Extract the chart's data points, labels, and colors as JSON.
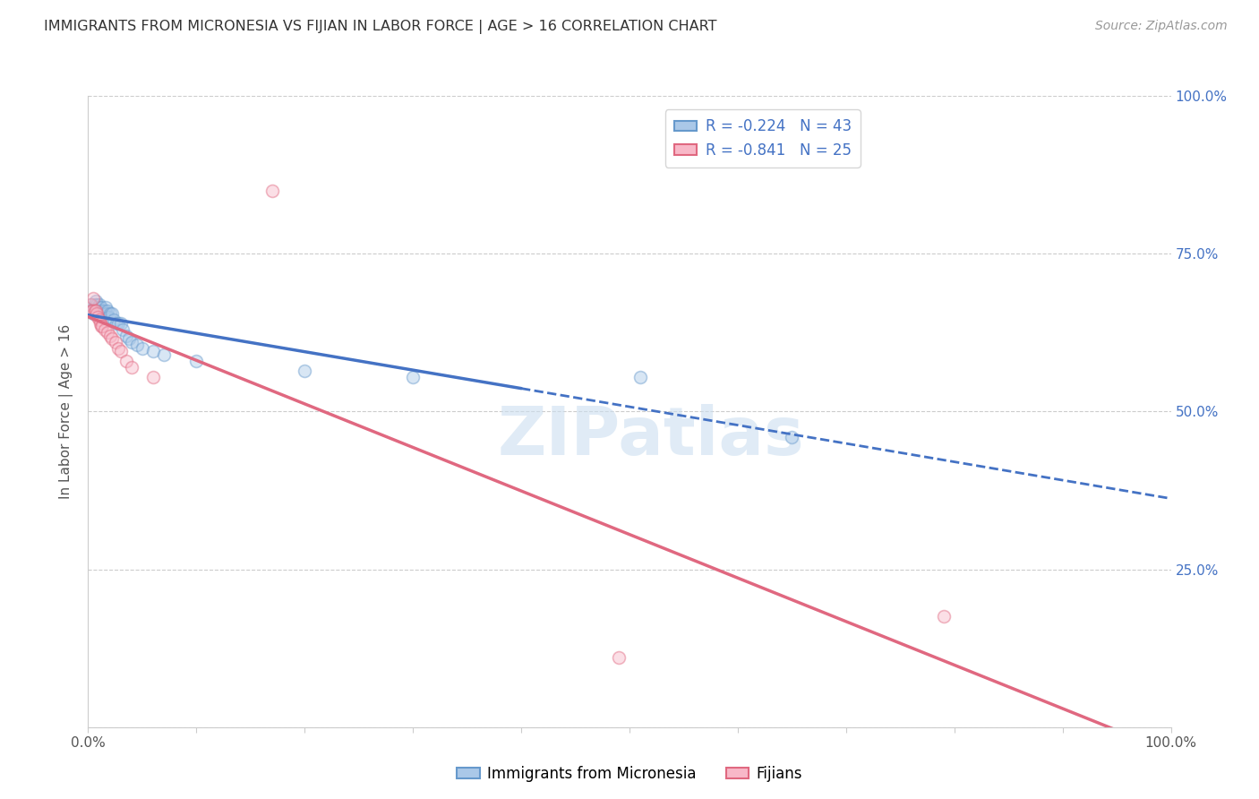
{
  "title": "IMMIGRANTS FROM MICRONESIA VS FIJIAN IN LABOR FORCE | AGE > 16 CORRELATION CHART",
  "source": "Source: ZipAtlas.com",
  "ylabel": "In Labor Force | Age > 16",
  "xlim": [
    0.0,
    1.0
  ],
  "ylim": [
    0.0,
    1.0
  ],
  "micronesia_color": "#aac8e8",
  "fijian_color": "#f8b8c8",
  "micronesia_edge": "#6699cc",
  "fijian_edge": "#e06880",
  "micronesia_line_color": "#4472c4",
  "fijian_line_color": "#e06880",
  "legend_r_micro": "R = -0.224",
  "legend_n_micro": "N = 43",
  "legend_r_fiji": "R = -0.841",
  "legend_n_fiji": "N = 25",
  "micronesia_x": [
    0.002,
    0.003,
    0.004,
    0.005,
    0.006,
    0.006,
    0.007,
    0.007,
    0.008,
    0.008,
    0.009,
    0.009,
    0.01,
    0.01,
    0.011,
    0.011,
    0.012,
    0.013,
    0.014,
    0.015,
    0.016,
    0.017,
    0.018,
    0.019,
    0.02,
    0.022,
    0.024,
    0.026,
    0.028,
    0.03,
    0.032,
    0.035,
    0.038,
    0.04,
    0.045,
    0.05,
    0.06,
    0.07,
    0.1,
    0.2,
    0.3,
    0.51,
    0.65
  ],
  "micronesia_y": [
    0.66,
    0.67,
    0.66,
    0.655,
    0.665,
    0.67,
    0.66,
    0.675,
    0.66,
    0.67,
    0.665,
    0.655,
    0.665,
    0.67,
    0.66,
    0.655,
    0.665,
    0.66,
    0.655,
    0.66,
    0.665,
    0.655,
    0.66,
    0.65,
    0.655,
    0.655,
    0.645,
    0.64,
    0.64,
    0.64,
    0.63,
    0.62,
    0.615,
    0.61,
    0.605,
    0.6,
    0.595,
    0.59,
    0.58,
    0.565,
    0.555,
    0.555,
    0.46
  ],
  "fijian_x": [
    0.002,
    0.003,
    0.004,
    0.005,
    0.006,
    0.007,
    0.008,
    0.009,
    0.01,
    0.011,
    0.012,
    0.013,
    0.015,
    0.018,
    0.02,
    0.022,
    0.025,
    0.028,
    0.03,
    0.035,
    0.04,
    0.06,
    0.17,
    0.49,
    0.79
  ],
  "fijian_y": [
    0.67,
    0.66,
    0.66,
    0.68,
    0.66,
    0.66,
    0.655,
    0.65,
    0.645,
    0.64,
    0.635,
    0.635,
    0.63,
    0.625,
    0.62,
    0.615,
    0.61,
    0.6,
    0.595,
    0.58,
    0.57,
    0.555,
    0.85,
    0.11,
    0.175
  ],
  "watermark": "ZIPatlas",
  "background_color": "#ffffff",
  "grid_color": "#cccccc",
  "right_axis_color": "#4472c4",
  "title_color": "#333333",
  "title_fontsize": 11.5,
  "source_fontsize": 10,
  "marker_size": 100,
  "marker_alpha": 0.45,
  "line_solid_end_micro": 0.4,
  "micro_line_start_y": 0.665,
  "micro_line_end_y_solid": 0.595,
  "micro_line_end_y_dash": 0.435,
  "fiji_line_start_y": 0.68,
  "fiji_line_end_y": -0.02
}
